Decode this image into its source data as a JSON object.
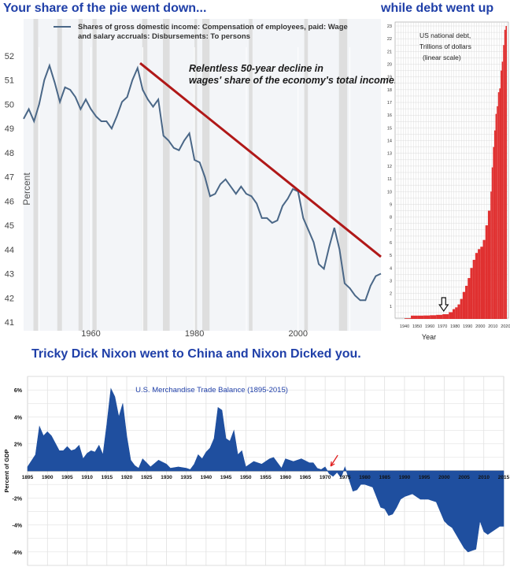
{
  "titles": {
    "left": "Your share of the pie went down...",
    "right": "while debt went up",
    "bottom": "Tricky Dick Nixon went to China and Nixon Dicked you."
  },
  "colors": {
    "title_blue": "#1f3fa8",
    "wage_line": "#4a6787",
    "trend_red": "#b01818",
    "debt_red": "#e03030",
    "trade_fill": "#1f4f9f",
    "recession_gray": "#dedede",
    "panel_bg": "#f3f5f8"
  },
  "chart_data": [
    {
      "type": "line",
      "legend": "Shares of gross domestic income: Compensation of employees, paid: Wage and salary accruals: Disbursements: To persons",
      "annotation": "Relentless 50-year decline in wages' share of the economy's total income.",
      "ylabel": "Percent",
      "xlabel": "",
      "xlim": [
        1947,
        2016
      ],
      "ylim": [
        41,
        52
      ],
      "xticks": [
        1960,
        1980,
        2000
      ],
      "yticks": [
        41,
        42,
        43,
        44,
        45,
        46,
        47,
        48,
        49,
        50,
        51,
        52
      ],
      "grid": "vertical",
      "recessions": [
        [
          1948.9,
          1949.8
        ],
        [
          1953.5,
          1954.4
        ],
        [
          1957.6,
          1958.4
        ],
        [
          1960.3,
          1961.1
        ],
        [
          1969.9,
          1970.9
        ],
        [
          1973.9,
          1975.2
        ],
        [
          1980.0,
          1980.5
        ],
        [
          1981.5,
          1982.9
        ],
        [
          1990.5,
          1991.2
        ],
        [
          2001.2,
          2001.9
        ],
        [
          2007.9,
          2009.5
        ]
      ],
      "series": [
        {
          "x": [
            1947,
            1948,
            1949,
            1950,
            1951,
            1952,
            1953,
            1954,
            1955,
            1956,
            1957,
            1958,
            1959,
            1960,
            1961,
            1962,
            1963,
            1964,
            1965,
            1966,
            1967,
            1968,
            1969,
            1970,
            1971,
            1972,
            1973,
            1974,
            1975,
            1976,
            1977,
            1978,
            1979,
            1980,
            1981,
            1982,
            1983,
            1984,
            1985,
            1986,
            1987,
            1988,
            1989,
            1990,
            1991,
            1992,
            1993,
            1994,
            1995,
            1996,
            1997,
            1998,
            1999,
            2000,
            2001,
            2002,
            2003,
            2004,
            2005,
            2006,
            2007,
            2008,
            2009,
            2010,
            2011,
            2012,
            2013,
            2014,
            2015,
            2016
          ],
          "values": [
            49.4,
            49.8,
            49.3,
            50.0,
            51.0,
            51.6,
            50.9,
            50.1,
            50.7,
            50.6,
            50.3,
            49.8,
            50.2,
            49.8,
            49.5,
            49.3,
            49.3,
            49.0,
            49.5,
            50.1,
            50.3,
            51.0,
            51.5,
            50.6,
            50.2,
            49.9,
            50.2,
            48.7,
            48.5,
            48.2,
            48.1,
            48.5,
            48.8,
            47.7,
            47.6,
            47.0,
            46.2,
            46.3,
            46.7,
            46.9,
            46.6,
            46.3,
            46.6,
            46.3,
            46.2,
            45.9,
            45.3,
            45.3,
            45.1,
            45.2,
            45.8,
            46.1,
            46.5,
            46.4,
            45.3,
            44.8,
            44.3,
            43.4,
            43.2,
            44.1,
            44.9,
            44.0,
            42.6,
            42.4,
            42.1,
            41.9,
            41.9,
            42.5,
            42.9,
            43.0
          ]
        }
      ],
      "trend_line": {
        "x": [
          1969.5,
          2016
        ],
        "y": [
          51.7,
          43.7
        ]
      }
    },
    {
      "type": "bar",
      "annotation": [
        "US national debt,",
        "Trillions of dollars",
        "(linear scale)"
      ],
      "xlabel": "Year",
      "ylabel": "",
      "xlim": [
        1935,
        2021
      ],
      "ylim": [
        0,
        23
      ],
      "xticks": [
        1940,
        1950,
        1960,
        1970,
        1980,
        1990,
        2000,
        2010,
        2020
      ],
      "yticks": [
        1,
        2,
        3,
        4,
        5,
        6,
        7,
        8,
        9,
        10,
        11,
        12,
        13,
        14,
        15,
        16,
        17,
        18,
        19,
        20,
        21,
        22,
        23
      ],
      "grid": "both",
      "arrow_year": 1971,
      "series": [
        {
          "x": [
            1940,
            1945,
            1950,
            1955,
            1960,
            1965,
            1970,
            1975,
            1978,
            1980,
            1982,
            1984,
            1986,
            1988,
            1990,
            1992,
            1994,
            1996,
            1998,
            2000,
            2002,
            2004,
            2006,
            2008,
            2009,
            2010,
            2011,
            2012,
            2013,
            2014,
            2015,
            2016,
            2017,
            2018,
            2019,
            2020
          ],
          "values": [
            0.05,
            0.26,
            0.26,
            0.27,
            0.29,
            0.32,
            0.37,
            0.53,
            0.77,
            0.91,
            1.14,
            1.57,
            2.12,
            2.6,
            3.21,
            4.0,
            4.64,
            5.18,
            5.48,
            5.67,
            6.2,
            7.35,
            8.5,
            10.0,
            11.9,
            13.5,
            14.8,
            16.1,
            16.7,
            17.8,
            18.1,
            19.5,
            20.2,
            21.5,
            22.7,
            23.0
          ]
        }
      ]
    },
    {
      "type": "area",
      "title": "U.S. Merchandise Trade Balance (1895-2015)",
      "ylabel": "Percent of GDP",
      "xlabel": "",
      "xlim": [
        1895,
        2015
      ],
      "ylim": [
        -7,
        7
      ],
      "xticks": [
        1895,
        1900,
        1905,
        1910,
        1915,
        1920,
        1925,
        1930,
        1935,
        1940,
        1945,
        1950,
        1955,
        1960,
        1965,
        1970,
        1975,
        1980,
        1985,
        1990,
        1995,
        2000,
        2005,
        2010,
        2015
      ],
      "yticks": [
        6,
        4,
        2,
        -2,
        -4,
        -6
      ],
      "ytick_labels": [
        "6%",
        "4%",
        "2%",
        "-2%",
        "-4%",
        "-6%"
      ],
      "grid": "both",
      "arrow_year": 1971,
      "series": [
        {
          "x": [
            1895,
            1897,
            1898,
            1899,
            1900,
            1901,
            1903,
            1904,
            1905,
            1906,
            1907,
            1908,
            1909,
            1910,
            1911,
            1912,
            1913,
            1914,
            1915,
            1916,
            1917,
            1918,
            1919,
            1920,
            1921,
            1922,
            1923,
            1924,
            1925,
            1926,
            1928,
            1930,
            1931,
            1933,
            1935,
            1936,
            1937,
            1938,
            1939,
            1940,
            1941,
            1942,
            1943,
            1944,
            1945,
            1946,
            1947,
            1948,
            1949,
            1950,
            1952,
            1954,
            1956,
            1957,
            1958,
            1959,
            1960,
            1962,
            1964,
            1966,
            1967,
            1968,
            1969,
            1970,
            1971,
            1972,
            1973,
            1974,
            1975,
            1976,
            1977,
            1978,
            1979,
            1980,
            1982,
            1984,
            1985,
            1986,
            1987,
            1988,
            1989,
            1990,
            1992,
            1994,
            1996,
            1998,
            2000,
            2001,
            2002,
            2004,
            2005,
            2006,
            2007,
            2008,
            2009,
            2010,
            2011,
            2012,
            2013,
            2014,
            2015
          ],
          "values": [
            0.3,
            1.2,
            3.3,
            2.6,
            2.9,
            2.6,
            1.5,
            1.5,
            1.8,
            1.5,
            1.6,
            1.9,
            0.9,
            1.3,
            1.5,
            1.4,
            1.9,
            1.2,
            3.5,
            6.1,
            5.5,
            4.0,
            5.0,
            2.6,
            0.8,
            0.4,
            0.2,
            0.9,
            0.6,
            0.3,
            0.8,
            0.5,
            0.2,
            0.3,
            0.2,
            0.1,
            0.5,
            1.2,
            0.9,
            1.4,
            1.7,
            2.4,
            4.7,
            4.5,
            2.4,
            2.2,
            3.0,
            1.2,
            1.5,
            0.3,
            0.7,
            0.5,
            0.9,
            1.0,
            0.6,
            0.2,
            0.9,
            0.7,
            0.9,
            0.6,
            0.6,
            0.2,
            0.1,
            0.3,
            -0.2,
            -0.4,
            -0.1,
            -0.5,
            0.3,
            -0.6,
            -1.5,
            -1.4,
            -1.0,
            -1.0,
            -1.2,
            -2.7,
            -2.8,
            -3.3,
            -3.2,
            -2.7,
            -2.1,
            -1.9,
            -1.7,
            -2.1,
            -2.1,
            -2.3,
            -3.7,
            -4.0,
            -4.2,
            -5.2,
            -5.7,
            -6.0,
            -5.9,
            -5.8,
            -3.7,
            -4.5,
            -4.7,
            -4.5,
            -4.3,
            -4.1,
            -4.1
          ]
        }
      ]
    }
  ]
}
